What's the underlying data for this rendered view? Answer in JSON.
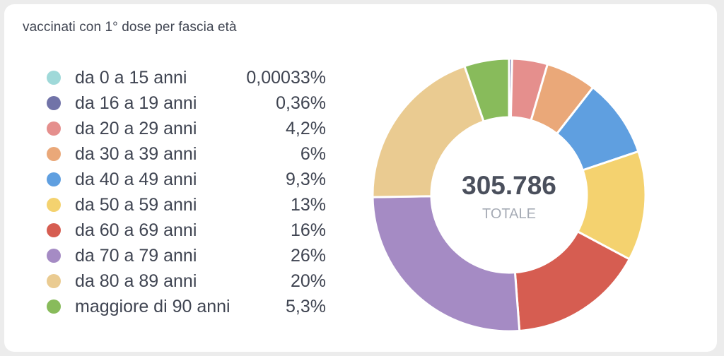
{
  "title": "vaccinati con 1° dose per fascia età",
  "chart_data": {
    "type": "pie",
    "subtype": "donut",
    "title": "vaccinati con 1° dose per fascia età",
    "center_value": "305.786",
    "center_label": "TOTALE",
    "legend_position": "left",
    "slices": [
      {
        "label": "da 0 a 15 anni",
        "value_text": "0,00033%",
        "value": 0.00033,
        "color": "#9fd9d9"
      },
      {
        "label": "da 16 a 19 anni",
        "value_text": "0,36%",
        "value": 0.36,
        "color": "#7173a8"
      },
      {
        "label": "da 20 a 29 anni",
        "value_text": "4,2%",
        "value": 4.2,
        "color": "#e58f8d"
      },
      {
        "label": "da 30 a 39 anni",
        "value_text": "6%",
        "value": 6,
        "color": "#eaa879"
      },
      {
        "label": "da 40 a 49 anni",
        "value_text": "9,3%",
        "value": 9.3,
        "color": "#5f9fe0"
      },
      {
        "label": "da 50 a 59 anni",
        "value_text": "13%",
        "value": 13,
        "color": "#f4d26f"
      },
      {
        "label": "da 60 a 69 anni",
        "value_text": "16%",
        "value": 16,
        "color": "#d65d51"
      },
      {
        "label": "da 70 a 79 anni",
        "value_text": "26%",
        "value": 26,
        "color": "#a58bc4"
      },
      {
        "label": "da 80 a 89 anni",
        "value_text": "20%",
        "value": 20,
        "color": "#eacb91"
      },
      {
        "label": "maggiore di 90 anni",
        "value_text": "5,3%",
        "value": 5.3,
        "color": "#88bb5b"
      }
    ]
  }
}
